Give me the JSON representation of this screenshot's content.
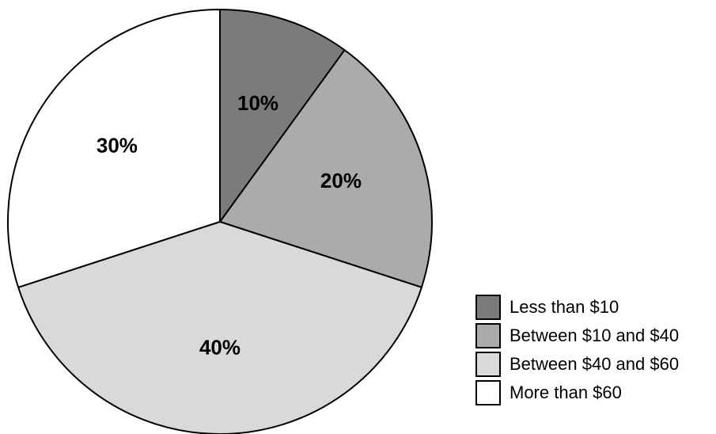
{
  "chart_data": {
    "type": "pie",
    "title": "",
    "categories": [
      "Less than $10",
      "Between $10 and $40",
      "Between $40 and $60",
      "More than $60"
    ],
    "values": [
      10,
      20,
      40,
      30
    ],
    "labels": [
      "10%",
      "20%",
      "40%",
      "30%"
    ],
    "colors": [
      "#7a7c7b",
      "#ababab",
      "#d9d9d9",
      "#ffffff"
    ],
    "start": "12 o'clock",
    "direction": "clockwise",
    "legend": "bottom-right"
  }
}
